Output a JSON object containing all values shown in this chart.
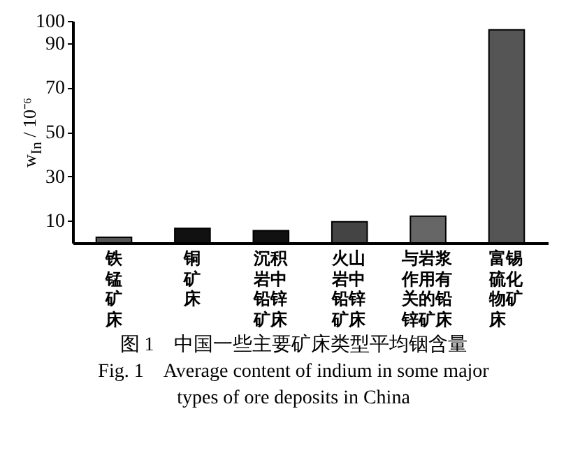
{
  "chart_data": {
    "type": "bar",
    "title": "图 1　中国一些主要矿床类型平均铟含量",
    "subtitle": "Fig. 1　Average content of indium in some major types of ore deposits in China",
    "ylabel": "w$_{In}$ / 10⁻⁶",
    "categories": [
      "铁锰矿床",
      "铜矿床",
      "沉积岩中铅锌矿床",
      "火山岩中铅锌矿床",
      "与岩浆作用有关的铅锌矿床",
      "富锡硫化物矿床"
    ],
    "values": [
      2.5,
      6.5,
      5.5,
      9.5,
      12,
      96
    ],
    "colors": [
      "#555555",
      "#111111",
      "#111111",
      "#444444",
      "#666666",
      "#555555"
    ],
    "ylim": [
      0,
      100
    ],
    "yticks": [
      10,
      30,
      50,
      70,
      90,
      100
    ],
    "grid": false
  }
}
